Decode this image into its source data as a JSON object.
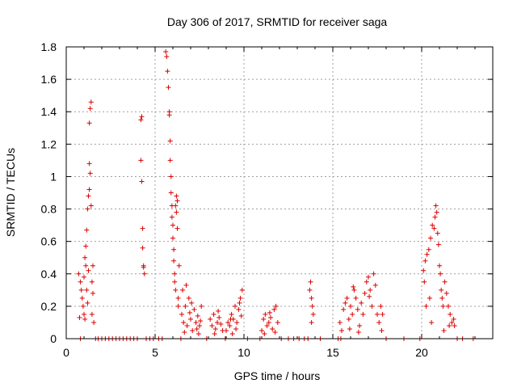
{
  "chart_data": {
    "type": "scatter",
    "title": "Day 306 of 2017, SRMTID for receiver saga",
    "xlabel": "GPS time / hours",
    "ylabel": "SRMTID / TECUs",
    "xlim": [
      0,
      24
    ],
    "ylim": [
      0,
      1.8
    ],
    "x_ticks": [
      0,
      5,
      10,
      15,
      20
    ],
    "x_tick_labels": [
      "0",
      "5",
      "10",
      "15",
      "20"
    ],
    "y_ticks": [
      0,
      0.2,
      0.4,
      0.6,
      0.8,
      1.0,
      1.2,
      1.4,
      1.6,
      1.8
    ],
    "y_tick_labels": [
      "0",
      "0.2",
      "0.4",
      "0.6",
      "0.8",
      "1",
      "1.2",
      "1.4",
      "1.6",
      "1.8"
    ],
    "grid": true,
    "series": [
      {
        "name": "SRMTID",
        "marker": "+",
        "color": "#dd0000",
        "points": [
          [
            0.7,
            0.4
          ],
          [
            0.8,
            0.35
          ],
          [
            0.85,
            0.3
          ],
          [
            0.9,
            0.25
          ],
          [
            0.95,
            0.2
          ],
          [
            1.0,
            0.38
          ],
          [
            1.0,
            0.15
          ],
          [
            1.05,
            0.5
          ],
          [
            1.05,
            0.12
          ],
          [
            1.1,
            0.45
          ],
          [
            1.1,
            0.57
          ],
          [
            1.15,
            0.3
          ],
          [
            1.15,
            0.67
          ],
          [
            1.2,
            0.8
          ],
          [
            1.2,
            0.22
          ],
          [
            1.25,
            0.88
          ],
          [
            1.25,
            0.42
          ],
          [
            1.3,
            0.92
          ],
          [
            1.3,
            1.08
          ],
          [
            1.3,
            1.33
          ],
          [
            1.35,
            1.42
          ],
          [
            1.35,
            1.02
          ],
          [
            1.4,
            1.46
          ],
          [
            1.4,
            0.82
          ],
          [
            1.45,
            0.35
          ],
          [
            1.45,
            0.15
          ],
          [
            1.5,
            0.28
          ],
          [
            1.5,
            0.45
          ],
          [
            1.55,
            0.1
          ],
          [
            0.75,
            0.13
          ],
          [
            4.2,
            1.35
          ],
          [
            4.25,
            1.37
          ],
          [
            4.2,
            1.1
          ],
          [
            4.25,
            0.97
          ],
          [
            4.3,
            0.68
          ],
          [
            4.3,
            0.56
          ],
          [
            4.35,
            0.45
          ],
          [
            4.35,
            0.44
          ],
          [
            4.4,
            0.4
          ],
          [
            5.6,
            1.77
          ],
          [
            5.65,
            1.74
          ],
          [
            5.7,
            1.65
          ],
          [
            5.75,
            1.55
          ],
          [
            5.8,
            1.4
          ],
          [
            5.8,
            1.38
          ],
          [
            5.85,
            1.22
          ],
          [
            5.85,
            1.1
          ],
          [
            5.9,
            1.0
          ],
          [
            5.9,
            0.9
          ],
          [
            5.95,
            0.82
          ],
          [
            5.95,
            0.75
          ],
          [
            6.0,
            0.7
          ],
          [
            6.0,
            0.62
          ],
          [
            6.05,
            0.55
          ],
          [
            6.05,
            0.48
          ],
          [
            6.1,
            0.4
          ],
          [
            6.1,
            0.35
          ],
          [
            6.15,
            0.3
          ],
          [
            6.15,
            0.82
          ],
          [
            6.2,
            0.78
          ],
          [
            6.2,
            0.88
          ],
          [
            6.25,
            0.85
          ],
          [
            6.25,
            0.68
          ],
          [
            6.3,
            0.25
          ],
          [
            6.3,
            0.2
          ],
          [
            6.35,
            0.45
          ],
          [
            6.5,
            0.15
          ],
          [
            6.6,
            0.1
          ],
          [
            6.7,
            0.2
          ],
          [
            6.8,
            0.08
          ],
          [
            6.9,
            0.25
          ],
          [
            7.0,
            0.12
          ],
          [
            7.1,
            0.05
          ],
          [
            7.2,
            0.18
          ],
          [
            7.3,
            0.1
          ],
          [
            7.4,
            0.14
          ],
          [
            7.5,
            0.08
          ],
          [
            7.6,
            0.2
          ],
          [
            6.55,
            0.3
          ],
          [
            6.75,
            0.33
          ],
          [
            7.05,
            0.22
          ],
          [
            7.35,
            0.06
          ],
          [
            6.65,
            0.04
          ],
          [
            6.95,
            0.16
          ],
          [
            7.45,
            0.03
          ],
          [
            7.55,
            0.11
          ],
          [
            8.1,
            0.12
          ],
          [
            8.2,
            0.08
          ],
          [
            8.3,
            0.15
          ],
          [
            8.4,
            0.06
          ],
          [
            8.5,
            0.1
          ],
          [
            8.6,
            0.13
          ],
          [
            8.7,
            0.09
          ],
          [
            8.8,
            0.05
          ],
          [
            8.35,
            0.03
          ],
          [
            8.55,
            0.17
          ],
          [
            9.0,
            0.05
          ],
          [
            9.1,
            0.1
          ],
          [
            9.2,
            0.08
          ],
          [
            9.3,
            0.15
          ],
          [
            9.4,
            0.12
          ],
          [
            9.5,
            0.2
          ],
          [
            9.6,
            0.1
          ],
          [
            9.7,
            0.18
          ],
          [
            9.8,
            0.25
          ],
          [
            9.9,
            0.3
          ],
          [
            9.75,
            0.22
          ],
          [
            9.55,
            0.06
          ],
          [
            9.35,
            0.03
          ],
          [
            9.25,
            0.12
          ],
          [
            9.85,
            0.14
          ],
          [
            11.0,
            0.05
          ],
          [
            11.1,
            0.12
          ],
          [
            11.2,
            0.15
          ],
          [
            11.3,
            0.08
          ],
          [
            11.4,
            0.1
          ],
          [
            11.5,
            0.13
          ],
          [
            11.6,
            0.06
          ],
          [
            11.7,
            0.18
          ],
          [
            11.8,
            0.2
          ],
          [
            11.9,
            0.1
          ],
          [
            11.15,
            0.03
          ],
          [
            11.45,
            0.16
          ],
          [
            11.75,
            0.04
          ],
          [
            13.7,
            0.3
          ],
          [
            13.75,
            0.35
          ],
          [
            13.8,
            0.25
          ],
          [
            13.85,
            0.2
          ],
          [
            13.9,
            0.15
          ],
          [
            13.8,
            0.1
          ],
          [
            15.4,
            0.1
          ],
          [
            15.5,
            0.05
          ],
          [
            15.6,
            0.18
          ],
          [
            15.7,
            0.22
          ],
          [
            15.8,
            0.25
          ],
          [
            15.9,
            0.12
          ],
          [
            16.0,
            0.2
          ],
          [
            16.1,
            0.15
          ],
          [
            16.2,
            0.3
          ],
          [
            16.3,
            0.25
          ],
          [
            16.4,
            0.18
          ],
          [
            16.5,
            0.08
          ],
          [
            16.6,
            0.22
          ],
          [
            16.7,
            0.15
          ],
          [
            16.8,
            0.28
          ],
          [
            16.9,
            0.35
          ],
          [
            17.0,
            0.38
          ],
          [
            17.1,
            0.3
          ],
          [
            17.2,
            0.2
          ],
          [
            17.3,
            0.4
          ],
          [
            17.4,
            0.33
          ],
          [
            17.5,
            0.15
          ],
          [
            17.6,
            0.1
          ],
          [
            17.7,
            0.2
          ],
          [
            17.75,
            0.05
          ],
          [
            17.8,
            0.15
          ],
          [
            16.15,
            0.32
          ],
          [
            15.95,
            0.06
          ],
          [
            16.45,
            0.04
          ],
          [
            17.05,
            0.26
          ],
          [
            20.1,
            0.42
          ],
          [
            20.15,
            0.35
          ],
          [
            20.2,
            0.48
          ],
          [
            20.3,
            0.52
          ],
          [
            20.4,
            0.55
          ],
          [
            20.5,
            0.62
          ],
          [
            20.6,
            0.7
          ],
          [
            20.7,
            0.68
          ],
          [
            20.75,
            0.75
          ],
          [
            20.8,
            0.82
          ],
          [
            20.85,
            0.78
          ],
          [
            20.9,
            0.65
          ],
          [
            20.95,
            0.58
          ],
          [
            21.0,
            0.45
          ],
          [
            21.05,
            0.4
          ],
          [
            21.1,
            0.3
          ],
          [
            21.15,
            0.25
          ],
          [
            21.2,
            0.2
          ],
          [
            21.3,
            0.35
          ],
          [
            21.4,
            0.28
          ],
          [
            21.5,
            0.2
          ],
          [
            21.6,
            0.15
          ],
          [
            21.7,
            0.1
          ],
          [
            21.8,
            0.12
          ],
          [
            21.85,
            0.08
          ],
          [
            20.25,
            0.2
          ],
          [
            20.45,
            0.25
          ],
          [
            20.55,
            0.1
          ],
          [
            21.25,
            0.05
          ],
          [
            21.55,
            0.08
          ],
          [
            0.8,
            0
          ],
          [
            1.65,
            0
          ],
          [
            1.8,
            0
          ],
          [
            2.0,
            0
          ],
          [
            2.2,
            0
          ],
          [
            2.4,
            0
          ],
          [
            2.6,
            0
          ],
          [
            2.8,
            0
          ],
          [
            3.0,
            0
          ],
          [
            3.2,
            0
          ],
          [
            3.4,
            0
          ],
          [
            3.6,
            0
          ],
          [
            3.8,
            0
          ],
          [
            4.0,
            0
          ],
          [
            4.5,
            0
          ],
          [
            4.7,
            0
          ],
          [
            4.9,
            0
          ],
          [
            5.2,
            0
          ],
          [
            5.4,
            0
          ],
          [
            6.45,
            0
          ],
          [
            7.9,
            0
          ],
          [
            8.95,
            0
          ],
          [
            10.2,
            0
          ],
          [
            10.9,
            0
          ],
          [
            12.1,
            0
          ],
          [
            12.5,
            0
          ],
          [
            12.8,
            0
          ],
          [
            13.1,
            0
          ],
          [
            13.4,
            0
          ],
          [
            13.6,
            0
          ],
          [
            14.3,
            0
          ],
          [
            15.3,
            0
          ],
          [
            15.45,
            0
          ],
          [
            18.0,
            0
          ],
          [
            19.0,
            0
          ],
          [
            19.9,
            0
          ],
          [
            22.0,
            0
          ],
          [
            22.3,
            0
          ],
          [
            22.9,
            0
          ]
        ]
      }
    ]
  }
}
